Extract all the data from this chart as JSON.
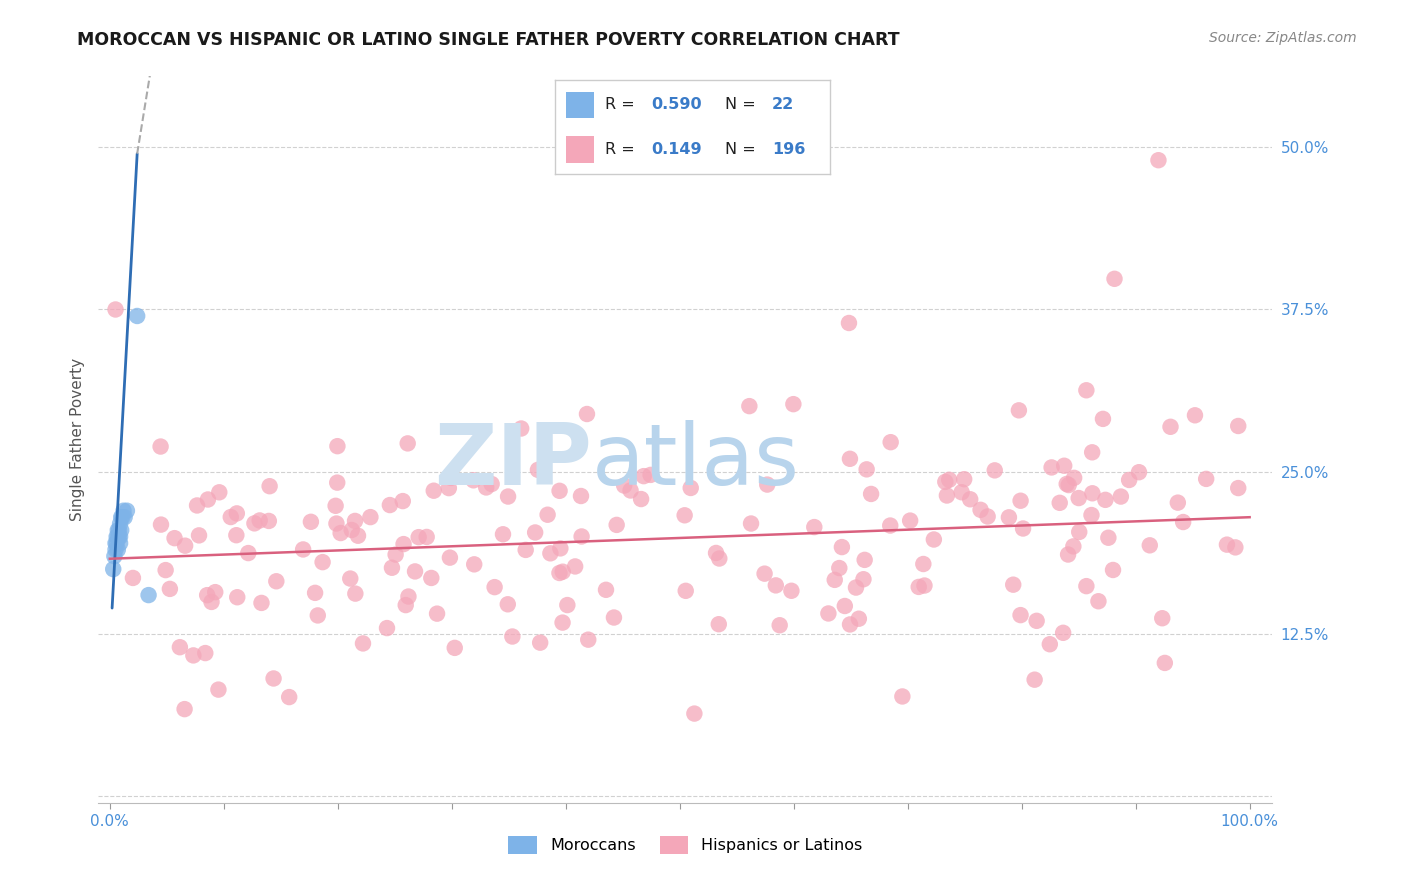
{
  "title": "MOROCCAN VS HISPANIC OR LATINO SINGLE FATHER POVERTY CORRELATION CHART",
  "source": "Source: ZipAtlas.com",
  "ylabel": "Single Father Poverty",
  "moroccan_color": "#7eb3e8",
  "hispanic_color": "#f4a7b9",
  "moroccan_line_color": "#2e6db4",
  "hispanic_line_color": "#d9607e",
  "moroccan_R": 0.59,
  "moroccan_N": 22,
  "hispanic_R": 0.149,
  "hispanic_N": 196,
  "watermark_zip": "ZIP",
  "watermark_atlas": "atlas",
  "xlim": [
    0.0,
    1.0
  ],
  "ylim": [
    0.0,
    0.53
  ],
  "yticks": [
    0.0,
    0.125,
    0.25,
    0.375,
    0.5
  ],
  "ytick_labels": [
    "",
    "12.5%",
    "25.0%",
    "37.5%",
    "50.0%"
  ],
  "xtick_labels": [
    "0.0%",
    "",
    "",
    "",
    "",
    "",
    "",
    "",
    "",
    "",
    "100.0%"
  ]
}
